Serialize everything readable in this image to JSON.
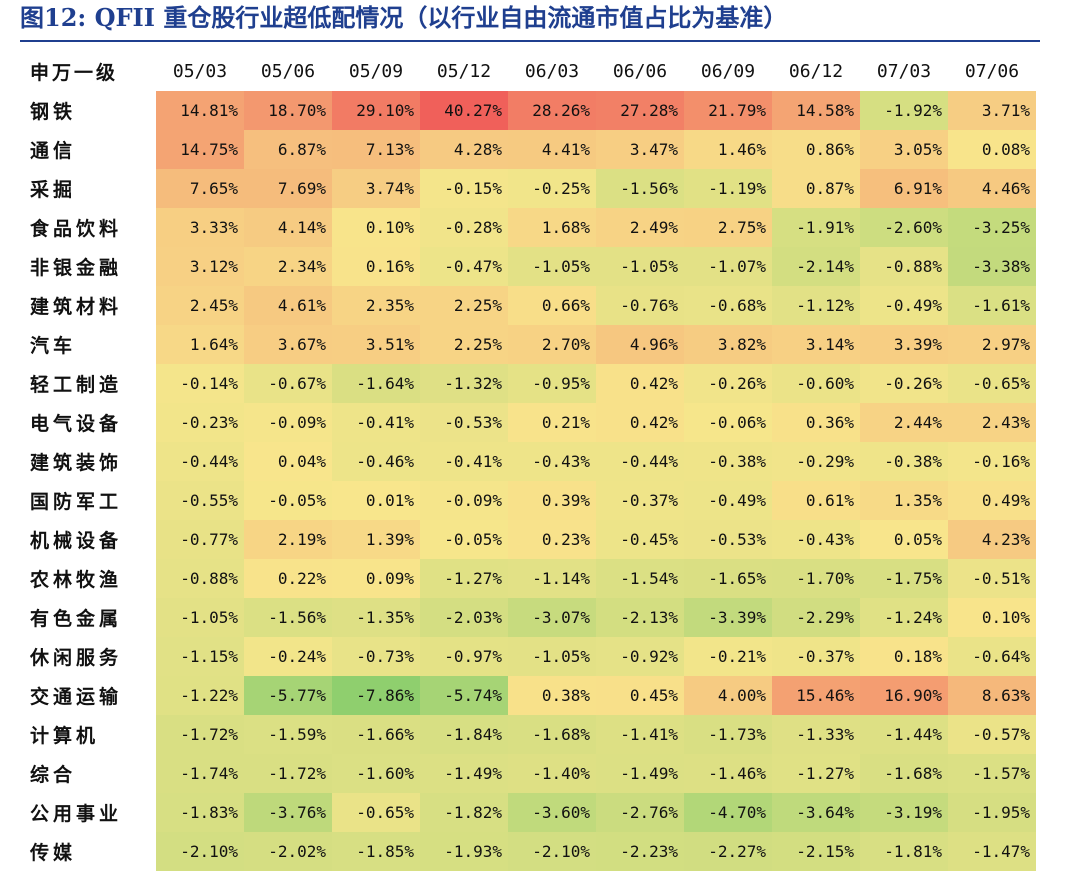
{
  "title": "图12:   QFII 重仓股行业超低配情况（以行业自由流通市值占比为基准）",
  "chart_data": {
    "type": "heatmap",
    "row_header": "申万一级",
    "columns": [
      "05/03",
      "05/06",
      "05/09",
      "05/12",
      "06/03",
      "06/06",
      "06/09",
      "06/12",
      "07/03",
      "07/06"
    ],
    "unit": "%",
    "color_scale": {
      "low": "#8fcf6e",
      "mid": "#f8e68c",
      "high": "#f0605a",
      "min": -7.86,
      "max": 40.27
    },
    "rows": [
      {
        "name": "钢铁",
        "values": [
          14.81,
          18.7,
          29.1,
          40.27,
          28.26,
          27.28,
          21.79,
          14.58,
          -1.92,
          3.71
        ]
      },
      {
        "name": "通信",
        "values": [
          14.75,
          6.87,
          7.13,
          4.28,
          4.41,
          3.47,
          1.46,
          0.86,
          3.05,
          0.08
        ]
      },
      {
        "name": "采掘",
        "values": [
          7.65,
          7.69,
          3.74,
          -0.15,
          -0.25,
          -1.56,
          -1.19,
          0.87,
          6.91,
          4.46
        ]
      },
      {
        "name": "食品饮料",
        "values": [
          3.33,
          4.14,
          0.1,
          -0.28,
          1.68,
          2.49,
          2.75,
          -1.91,
          -2.6,
          -3.25
        ]
      },
      {
        "name": "非银金融",
        "values": [
          3.12,
          2.34,
          0.16,
          -0.47,
          -1.05,
          -1.05,
          -1.07,
          -2.14,
          -0.88,
          -3.38
        ]
      },
      {
        "name": "建筑材料",
        "values": [
          2.45,
          4.61,
          2.35,
          2.25,
          0.66,
          -0.76,
          -0.68,
          -1.12,
          -0.49,
          -1.61
        ]
      },
      {
        "name": "汽车",
        "values": [
          1.64,
          3.67,
          3.51,
          2.25,
          2.7,
          4.96,
          3.82,
          3.14,
          3.39,
          2.97
        ]
      },
      {
        "name": "轻工制造",
        "values": [
          -0.14,
          -0.67,
          -1.64,
          -1.32,
          -0.95,
          0.42,
          -0.26,
          -0.6,
          -0.26,
          -0.65
        ]
      },
      {
        "name": "电气设备",
        "values": [
          -0.23,
          -0.09,
          -0.41,
          -0.53,
          0.21,
          0.42,
          -0.06,
          0.36,
          2.44,
          2.43
        ]
      },
      {
        "name": "建筑装饰",
        "values": [
          -0.44,
          0.04,
          -0.46,
          -0.41,
          -0.43,
          -0.44,
          -0.38,
          -0.29,
          -0.38,
          -0.16
        ]
      },
      {
        "name": "国防军工",
        "values": [
          -0.55,
          -0.05,
          0.01,
          -0.09,
          0.39,
          -0.37,
          -0.49,
          0.61,
          1.35,
          0.49
        ]
      },
      {
        "name": "机械设备",
        "values": [
          -0.77,
          2.19,
          1.39,
          -0.05,
          0.23,
          -0.45,
          -0.53,
          -0.43,
          0.05,
          4.23
        ]
      },
      {
        "name": "农林牧渔",
        "values": [
          -0.88,
          0.22,
          0.09,
          -1.27,
          -1.14,
          -1.54,
          -1.65,
          -1.7,
          -1.75,
          -0.51
        ]
      },
      {
        "name": "有色金属",
        "values": [
          -1.05,
          -1.56,
          -1.35,
          -2.03,
          -3.07,
          -2.13,
          -3.39,
          -2.29,
          -1.24,
          0.1
        ]
      },
      {
        "name": "休闲服务",
        "values": [
          -1.15,
          -0.24,
          -0.73,
          -0.97,
          -1.05,
          -0.92,
          -0.21,
          -0.37,
          0.18,
          -0.64
        ]
      },
      {
        "name": "交通运输",
        "values": [
          -1.22,
          -5.77,
          -7.86,
          -5.74,
          0.38,
          0.45,
          4.0,
          15.46,
          16.9,
          8.63
        ]
      },
      {
        "name": "计算机",
        "values": [
          -1.72,
          -1.59,
          -1.66,
          -1.84,
          -1.68,
          -1.41,
          -1.73,
          -1.33,
          -1.44,
          -0.57
        ]
      },
      {
        "name": "综合",
        "values": [
          -1.74,
          -1.72,
          -1.6,
          -1.49,
          -1.4,
          -1.49,
          -1.46,
          -1.27,
          -1.68,
          -1.57
        ]
      },
      {
        "name": "公用事业",
        "values": [
          -1.83,
          -3.76,
          -0.65,
          -1.82,
          -3.6,
          -2.76,
          -4.7,
          -3.64,
          -3.19,
          -1.95
        ]
      },
      {
        "name": "传媒",
        "values": [
          -2.1,
          -2.02,
          -1.85,
          -1.93,
          -2.1,
          -2.23,
          -2.27,
          -2.15,
          -1.81,
          -1.47
        ]
      }
    ]
  }
}
